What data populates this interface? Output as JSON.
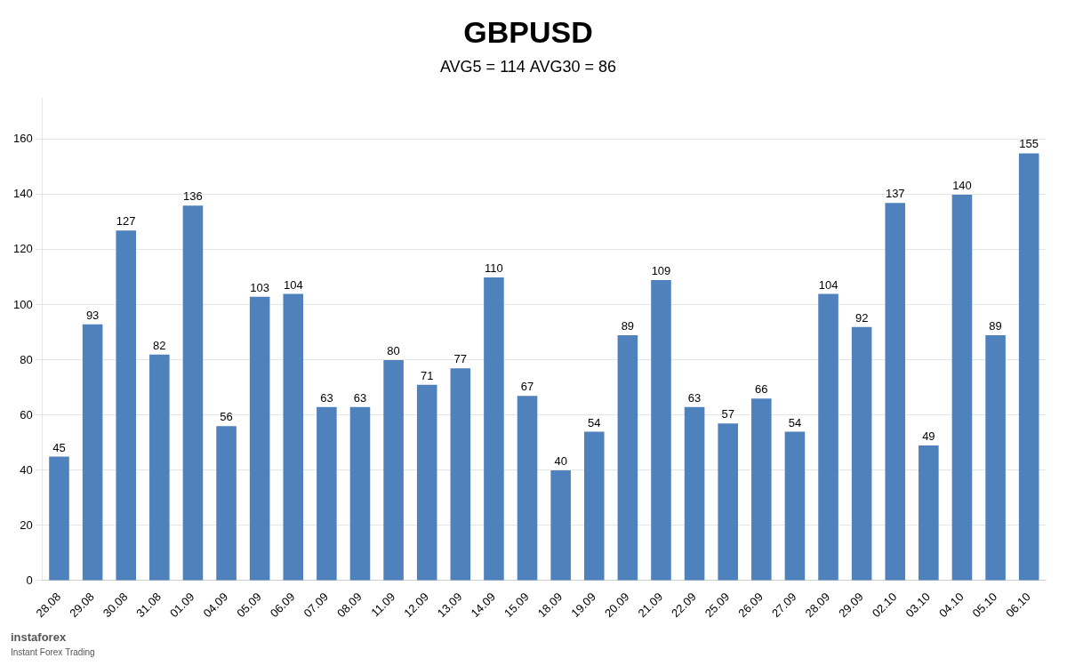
{
  "chart_data": {
    "type": "bar",
    "title": "GBPUSD",
    "subtitle": "AVG5 = 114 AVG30 = 86",
    "categories": [
      "28.08",
      "29.08",
      "30.08",
      "31.08",
      "01.09",
      "04.09",
      "05.09",
      "06.09",
      "07.09",
      "08.09",
      "11.09",
      "12.09",
      "13.09",
      "14.09",
      "15.09",
      "18.09",
      "19.09",
      "20.09",
      "21.09",
      "22.09",
      "25.09",
      "26.09",
      "27.09",
      "28.09",
      "29.09",
      "02.10",
      "03.10",
      "04.10",
      "05.10",
      "06.10"
    ],
    "values": [
      45,
      93,
      127,
      82,
      136,
      56,
      103,
      104,
      63,
      63,
      80,
      71,
      77,
      110,
      67,
      40,
      54,
      89,
      109,
      63,
      57,
      66,
      54,
      104,
      92,
      137,
      49,
      140,
      89,
      155
    ],
    "color": "#4F81BD",
    "ylim": [
      0,
      175
    ],
    "yticks": [
      0,
      20,
      40,
      60,
      80,
      100,
      120,
      140,
      160
    ],
    "grid": true,
    "data_labels": true,
    "annotations": [
      "instaforex",
      "Instant Forex Trading"
    ]
  }
}
